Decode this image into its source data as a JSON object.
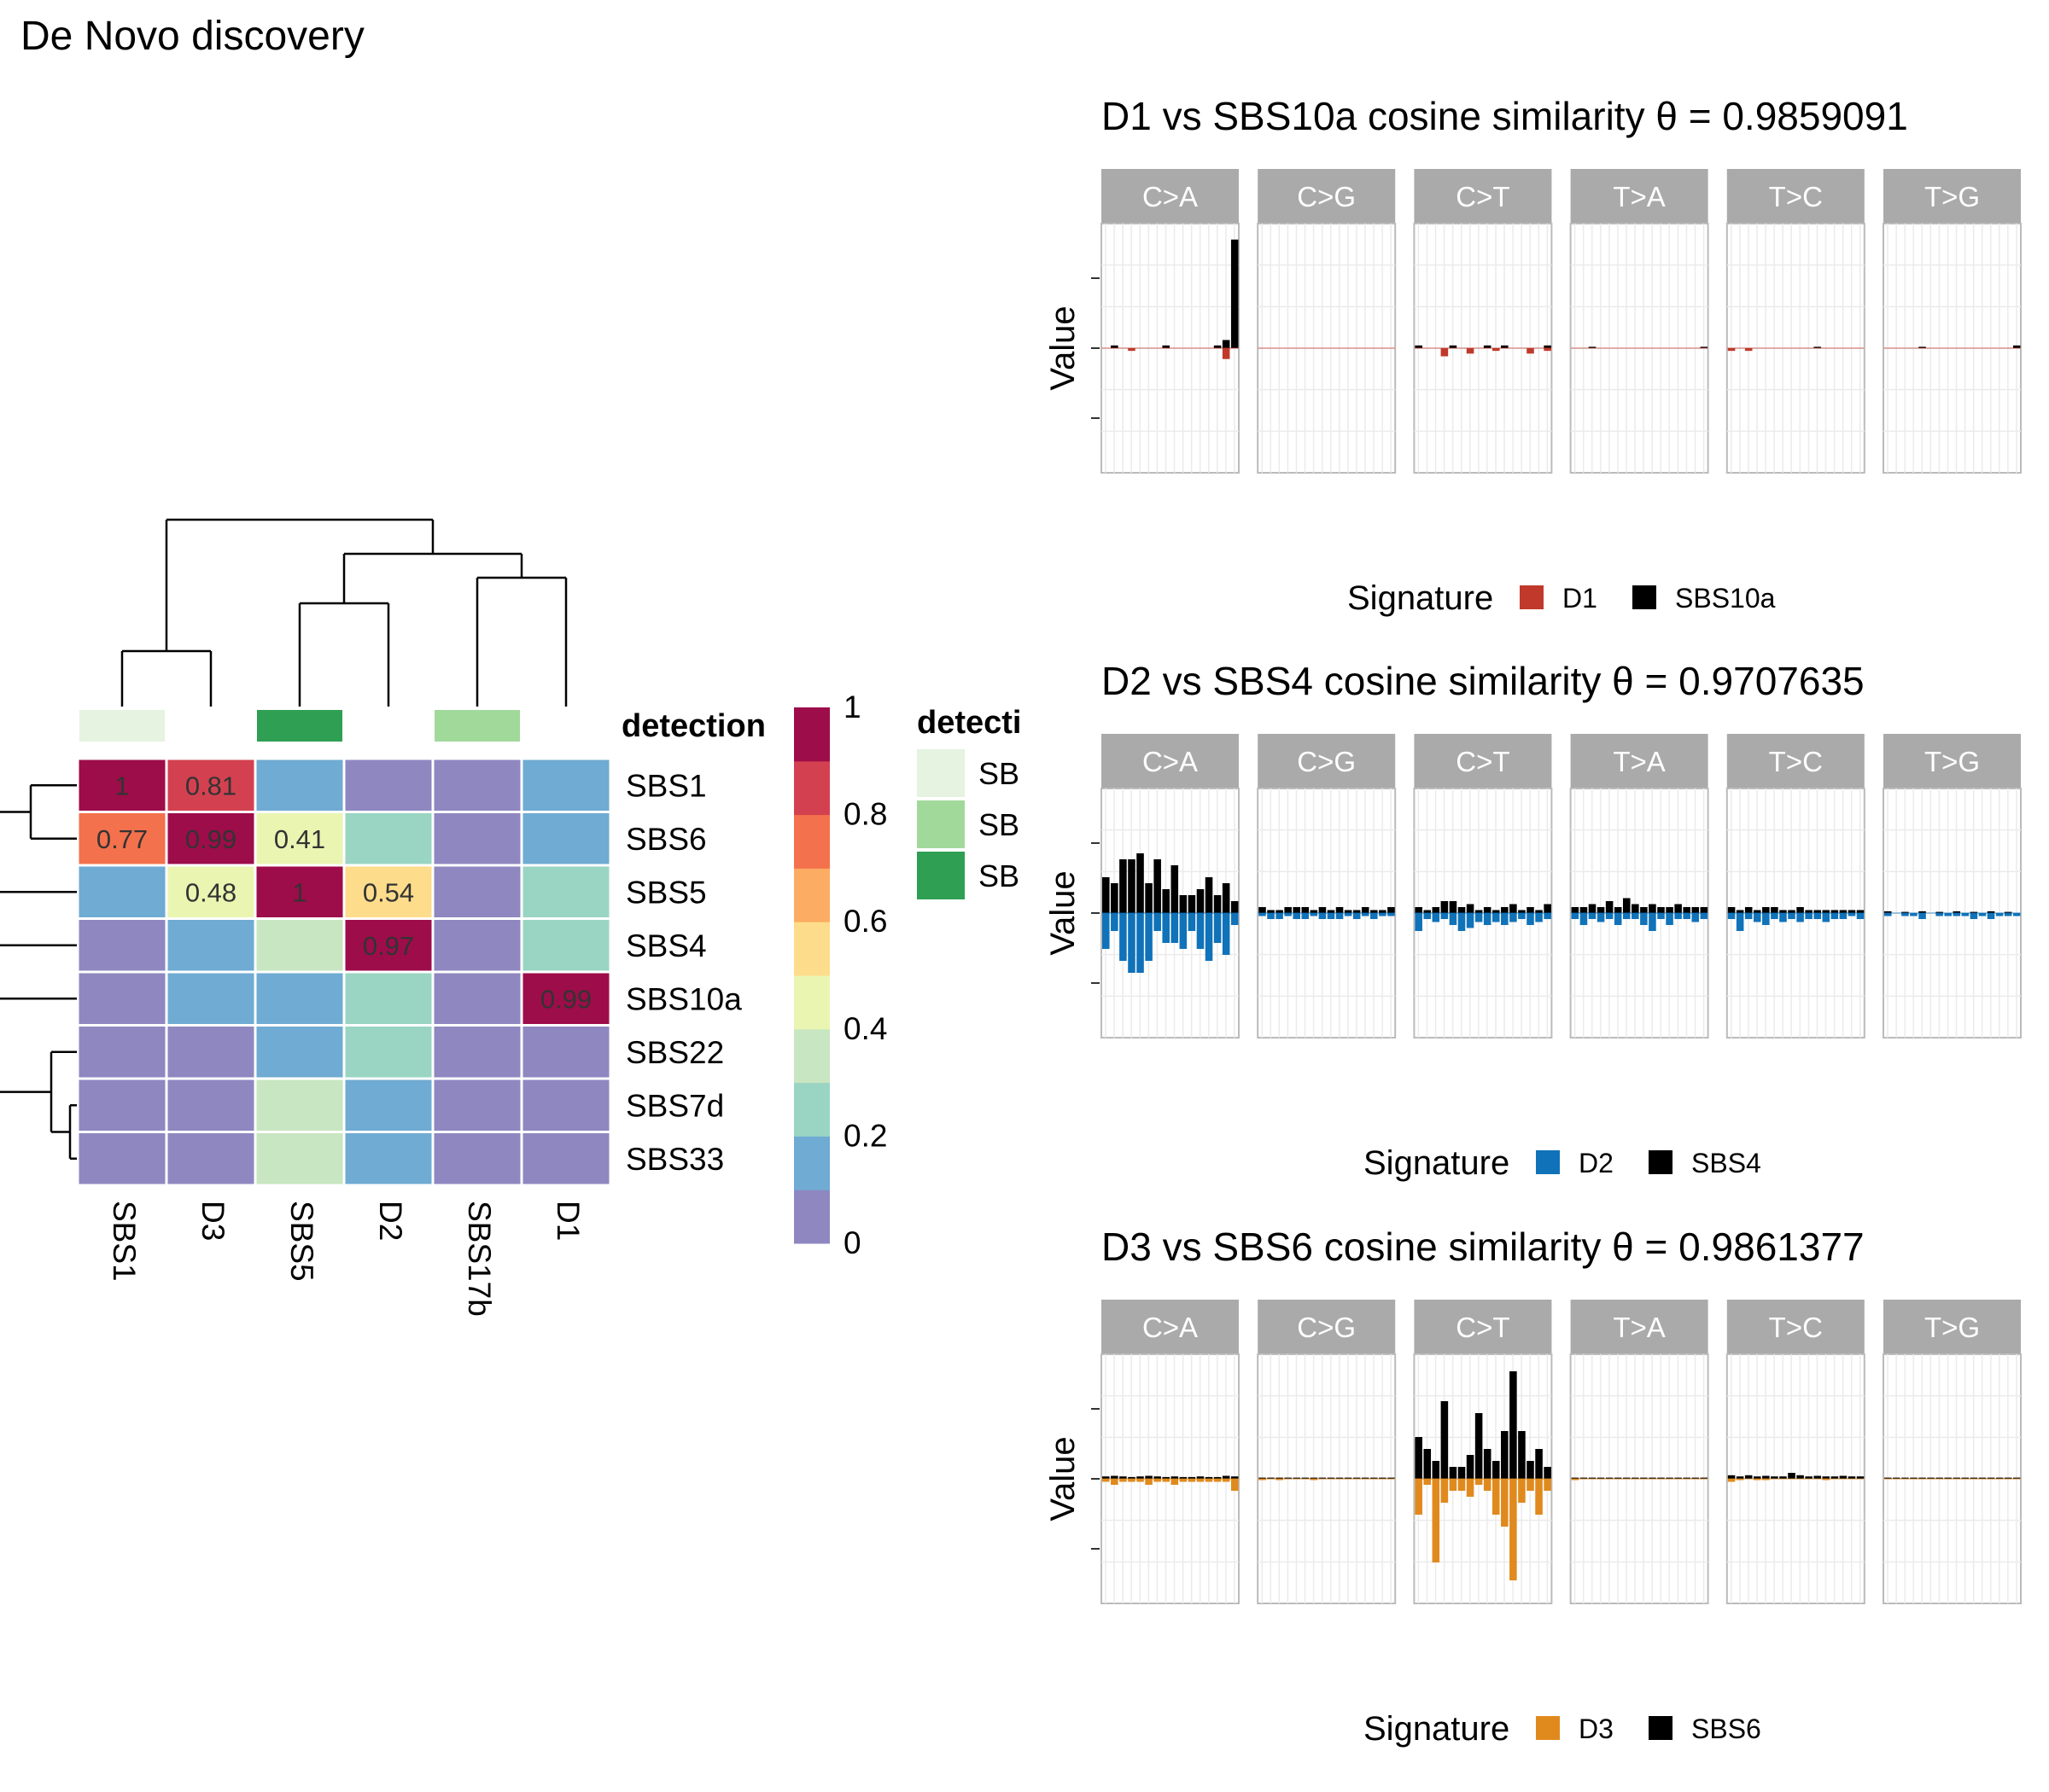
{
  "figure": {
    "title": "De Novo discovery"
  },
  "chart_data": [
    {
      "type": "heatmap",
      "title": "",
      "columns": [
        "SBS1",
        "D3",
        "SBS5",
        "D2",
        "SBS17b",
        "D1"
      ],
      "rows": [
        "SBS1",
        "SBS6",
        "SBS5",
        "SBS4",
        "SBS10a",
        "SBS22",
        "SBS7d",
        "SBS33"
      ],
      "values": [
        [
          1.0,
          0.81,
          0.15,
          0.05,
          0.05,
          0.15
        ],
        [
          0.77,
          0.99,
          0.41,
          0.25,
          0.05,
          0.15
        ],
        [
          0.15,
          0.48,
          1.0,
          0.54,
          0.05,
          0.25
        ],
        [
          0.05,
          0.15,
          0.35,
          0.97,
          0.05,
          0.25
        ],
        [
          0.05,
          0.15,
          0.15,
          0.25,
          0.05,
          0.99
        ],
        [
          0.05,
          0.05,
          0.15,
          0.25,
          0.05,
          0.05
        ],
        [
          0.05,
          0.05,
          0.35,
          0.15,
          0.05,
          0.05
        ],
        [
          0.05,
          0.05,
          0.35,
          0.15,
          0.05,
          0.05
        ]
      ],
      "cell_labels": [
        [
          "1",
          "0.81",
          "",
          "",
          "",
          ""
        ],
        [
          "0.77",
          "0.99",
          "0.41",
          "",
          "",
          ""
        ],
        [
          "",
          "0.48",
          "1",
          "0.54",
          "",
          ""
        ],
        [
          "",
          "",
          "",
          "0.97",
          "",
          ""
        ],
        [
          "",
          "",
          "",
          "",
          "",
          "0.99"
        ],
        [
          "",
          "",
          "",
          "",
          "",
          ""
        ],
        [
          "",
          "",
          "",
          "",
          "",
          ""
        ],
        [
          "",
          "",
          "",
          "",
          "",
          ""
        ]
      ],
      "colorbar": {
        "ticks": [
          "0",
          "0.2",
          "0.4",
          "0.6",
          "0.8",
          "1"
        ],
        "colors": [
          "#8F87C0",
          "#6FABD3",
          "#99D5C2",
          "#C8E6C1",
          "#EAF5B2",
          "#FDDD8B",
          "#FDAD63",
          "#F3714C",
          "#D34150",
          "#9D0D4A"
        ]
      },
      "detection": {
        "title": "detection",
        "column_colors": [
          "#E5F3E0",
          "#FFFFFF",
          "#2E9F53",
          "#FFFFFF",
          "#A1D99B",
          "#FFFFFF"
        ],
        "legend_title": "detecti",
        "legend_labels": [
          "SB",
          "SB",
          "SB"
        ],
        "legend_colors": [
          "#E5F3E0",
          "#A1D99B",
          "#2E9F53"
        ]
      }
    },
    {
      "type": "bar",
      "title": "D1 vs SBS10a cosine similarity θ = 0.9859091",
      "ylabel": "Value",
      "facets": [
        "C>A",
        "C>G",
        "C>T",
        "T>A",
        "T>C",
        "T>G"
      ],
      "legend_title": "Signature",
      "series": [
        {
          "name": "D1",
          "color": "#C0392B",
          "sign": -1,
          "values": [
            [
              0,
              0,
              0,
              0.01,
              0,
              0,
              0,
              0,
              0,
              0,
              0,
              0,
              0,
              0,
              0.04,
              0
            ],
            [
              0,
              0,
              0,
              0,
              0,
              0,
              0,
              0,
              0,
              0,
              0,
              0,
              0,
              0,
              0,
              0
            ],
            [
              0,
              0,
              0,
              0.03,
              0,
              0,
              0.02,
              0,
              0,
              0.01,
              0,
              0,
              0,
              0.02,
              0,
              0.01
            ],
            [
              0,
              0,
              0,
              0,
              0,
              0,
              0,
              0,
              0,
              0,
              0,
              0,
              0,
              0,
              0,
              0
            ],
            [
              0.01,
              0,
              0.01,
              0,
              0,
              0,
              0,
              0,
              0,
              0,
              0,
              0,
              0,
              0,
              0,
              0
            ],
            [
              0,
              0,
              0,
              0,
              0,
              0,
              0,
              0,
              0,
              0,
              0,
              0,
              0,
              0,
              0,
              0
            ]
          ]
        },
        {
          "name": "SBS10a",
          "color": "#000000",
          "sign": 1,
          "values": [
            [
              0,
              0.01,
              0,
              0,
              0,
              0,
              0,
              0.01,
              0,
              0,
              0,
              0,
              0,
              0.01,
              0.03,
              0.4
            ],
            [
              0,
              0,
              0,
              0,
              0,
              0,
              0,
              0,
              0,
              0,
              0,
              0,
              0,
              0,
              0,
              0
            ],
            [
              0.01,
              0,
              0,
              0,
              0.01,
              0,
              0,
              0,
              0.01,
              0,
              0.01,
              0,
              0,
              0,
              0,
              0.01
            ],
            [
              0,
              0,
              0.005,
              0,
              0,
              0,
              0,
              0,
              0,
              0,
              0,
              0,
              0,
              0,
              0,
              0.005
            ],
            [
              0,
              0,
              0,
              0,
              0,
              0,
              0,
              0,
              0,
              0,
              0.005,
              0,
              0,
              0,
              0,
              0
            ],
            [
              0,
              0,
              0,
              0,
              0.005,
              0,
              0,
              0,
              0,
              0,
              0,
              0,
              0,
              0,
              0,
              0.01
            ]
          ]
        }
      ],
      "ylim": [
        -0.44,
        0.44
      ]
    },
    {
      "type": "bar",
      "title": "D2 vs SBS4 cosine similarity θ = 0.9707635",
      "ylabel": "Value",
      "facets": [
        "C>A",
        "C>G",
        "C>T",
        "T>A",
        "T>C",
        "T>G"
      ],
      "legend_title": "Signature",
      "series": [
        {
          "name": "D2",
          "color": "#1072B9",
          "sign": -1,
          "values": [
            [
              0.06,
              0.03,
              0.08,
              0.1,
              0.1,
              0.08,
              0.03,
              0.05,
              0.05,
              0.06,
              0.03,
              0.06,
              0.08,
              0.05,
              0.07,
              0.02
            ],
            [
              0.005,
              0.01,
              0.01,
              0.005,
              0.01,
              0.01,
              0.005,
              0.01,
              0.01,
              0.01,
              0.005,
              0.01,
              0.005,
              0.01,
              0.005,
              0.005
            ],
            [
              0.03,
              0.01,
              0.015,
              0.01,
              0.02,
              0.03,
              0.025,
              0.015,
              0.02,
              0.015,
              0.02,
              0.015,
              0.01,
              0.02,
              0.015,
              0.01
            ],
            [
              0.01,
              0.02,
              0.01,
              0.015,
              0.01,
              0.02,
              0.01,
              0.01,
              0.02,
              0.03,
              0.01,
              0.02,
              0.01,
              0.01,
              0.015,
              0.01
            ],
            [
              0.01,
              0.03,
              0.01,
              0.015,
              0.02,
              0.01,
              0.015,
              0.01,
              0.015,
              0.01,
              0.01,
              0.015,
              0.01,
              0.01,
              0.005,
              0.01
            ],
            [
              0.005,
              0,
              0.005,
              0.005,
              0.01,
              0,
              0.005,
              0.005,
              0.005,
              0.005,
              0.01,
              0.005,
              0.01,
              0.005,
              0.005,
              0.005
            ]
          ]
        },
        {
          "name": "SBS4",
          "color": "#000000",
          "sign": 1,
          "values": [
            [
              0.06,
              0.05,
              0.09,
              0.09,
              0.1,
              0.05,
              0.09,
              0.04,
              0.08,
              0.03,
              0.03,
              0.04,
              0.06,
              0.03,
              0.05,
              0.02
            ],
            [
              0.01,
              0.005,
              0.005,
              0.01,
              0.01,
              0.01,
              0.005,
              0.01,
              0.005,
              0.01,
              0.005,
              0.005,
              0.01,
              0.005,
              0.005,
              0.01
            ],
            [
              0.01,
              0.005,
              0.01,
              0.02,
              0.02,
              0.01,
              0.015,
              0.005,
              0.01,
              0.005,
              0.01,
              0.015,
              0.005,
              0.01,
              0.005,
              0.015
            ],
            [
              0.01,
              0.01,
              0.015,
              0.01,
              0.02,
              0.01,
              0.025,
              0.015,
              0.01,
              0.015,
              0.01,
              0.01,
              0.015,
              0.01,
              0.01,
              0.01
            ],
            [
              0.01,
              0.005,
              0.01,
              0.005,
              0.01,
              0.01,
              0.005,
              0.005,
              0.01,
              0.005,
              0.005,
              0.005,
              0.005,
              0.005,
              0.005,
              0.005
            ],
            [
              0.003,
              0,
              0.002,
              0,
              0.003,
              0,
              0.002,
              0,
              0.003,
              0,
              0.002,
              0,
              0.003,
              0,
              0.002,
              0
            ]
          ]
        }
      ],
      "ylim": [
        -0.2,
        0.2
      ]
    },
    {
      "type": "bar",
      "title": "D3 vs SBS6 cosine similarity θ = 0.9861377",
      "ylabel": "Value",
      "facets": [
        "C>A",
        "C>G",
        "C>T",
        "T>A",
        "T>C",
        "T>G"
      ],
      "legend_title": "Signature",
      "series": [
        {
          "name": "D3",
          "color": "#E08A1E",
          "sign": -1,
          "values": [
            [
              0.005,
              0.01,
              0.005,
              0.005,
              0.005,
              0.01,
              0.005,
              0.005,
              0.01,
              0.005,
              0.005,
              0.005,
              0.005,
              0.005,
              0.005,
              0.02
            ],
            [
              0.002,
              0,
              0.002,
              0,
              0,
              0,
              0.002,
              0,
              0,
              0,
              0,
              0,
              0,
              0,
              0,
              0
            ],
            [
              0.06,
              0.01,
              0.14,
              0.04,
              0.02,
              0.02,
              0.03,
              0.01,
              0.02,
              0.06,
              0.08,
              0.17,
              0.04,
              0.02,
              0.06,
              0.02
            ],
            [
              0.002,
              0,
              0,
              0,
              0,
              0,
              0,
              0,
              0,
              0,
              0,
              0,
              0,
              0,
              0,
              0
            ],
            [
              0.005,
              0.002,
              0,
              0.002,
              0.002,
              0,
              0,
              0,
              0,
              0,
              0,
              0.002,
              0,
              0,
              0,
              0
            ],
            [
              0,
              0,
              0,
              0,
              0,
              0,
              0,
              0,
              0,
              0,
              0,
              0,
              0,
              0,
              0,
              0
            ]
          ]
        },
        {
          "name": "SBS6",
          "color": "#000000",
          "sign": 1,
          "values": [
            [
              0.004,
              0.005,
              0.004,
              0.003,
              0.004,
              0.005,
              0.004,
              0.003,
              0.004,
              0.003,
              0.003,
              0.004,
              0.003,
              0.003,
              0.005,
              0.004
            ],
            [
              0.002,
              0.002,
              0.002,
              0.002,
              0.002,
              0.002,
              0.002,
              0.002,
              0.002,
              0.002,
              0.002,
              0.002,
              0.002,
              0.002,
              0.002,
              0.002
            ],
            [
              0.07,
              0.05,
              0.03,
              0.13,
              0.02,
              0.02,
              0.04,
              0.11,
              0.05,
              0.03,
              0.08,
              0.18,
              0.08,
              0.03,
              0.05,
              0.02
            ],
            [
              0.002,
              0.002,
              0.002,
              0.002,
              0.002,
              0.002,
              0.002,
              0.002,
              0.002,
              0.002,
              0.002,
              0.002,
              0.002,
              0.002,
              0.002,
              0.002
            ],
            [
              0.006,
              0.004,
              0.006,
              0.004,
              0.005,
              0.004,
              0.004,
              0.01,
              0.006,
              0.004,
              0.005,
              0.004,
              0.004,
              0.005,
              0.004,
              0.004
            ],
            [
              0.002,
              0.002,
              0.002,
              0.002,
              0.002,
              0.002,
              0.002,
              0.002,
              0.002,
              0.002,
              0.002,
              0.002,
              0.002,
              0.002,
              0.002,
              0.002
            ]
          ]
        }
      ],
      "ylim": [
        -0.2,
        0.2
      ]
    }
  ]
}
